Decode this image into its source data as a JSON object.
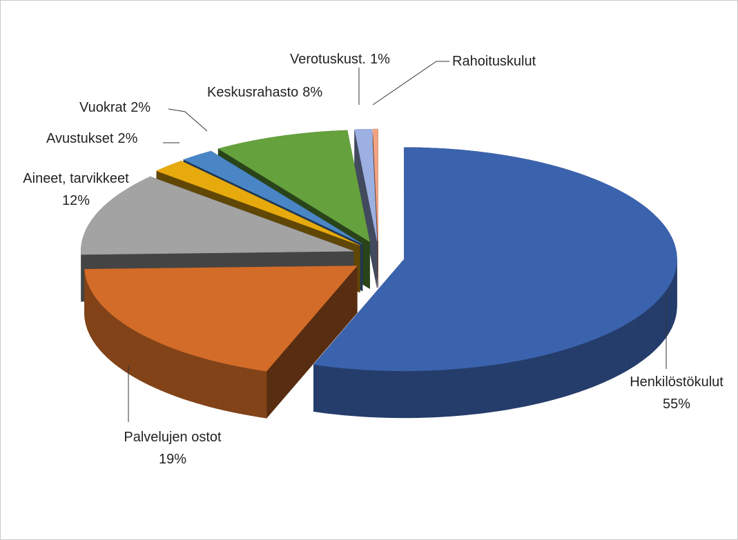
{
  "chart_data": {
    "type": "pie3d",
    "categories": [
      "Henkilöstökulut",
      "Palvelujen ostot",
      "Aineet, tarvikkeet",
      "Avustukset",
      "Vuokrat",
      "Keskusrahasto",
      "Verotuskust.",
      "Rahoituskulut"
    ],
    "values": [
      55,
      19,
      12,
      2,
      2,
      8,
      1,
      0.3
    ],
    "value_labels": [
      "55%",
      "19%",
      "12%",
      "2%",
      "2%",
      "8%",
      "1%",
      null
    ],
    "colors": [
      "#3b63ad",
      "#d26c28",
      "#a3a3a3",
      "#e7aa0d",
      "#4a86c6",
      "#65a13d",
      "#9db0e2",
      "#f1a383"
    ]
  }
}
